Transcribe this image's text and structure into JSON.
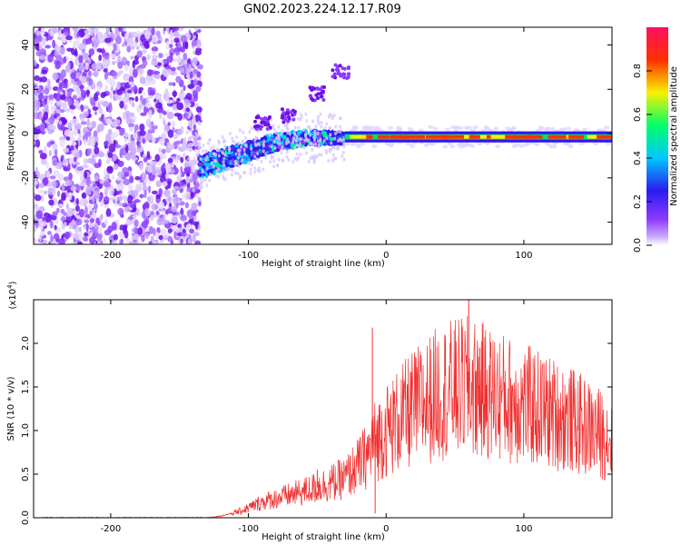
{
  "title": "GN02.2023.224.12.17.R09",
  "chart_data": [
    {
      "type": "heatmap",
      "xlabel": "Height of straight line (km)",
      "ylabel": "Frequency (Hz)",
      "xlim": [
        -256,
        164
      ],
      "ylim": [
        -50,
        48
      ],
      "xticks": [
        -200,
        -100,
        0,
        100
      ],
      "xtick_labels": [
        "-200",
        "-100",
        "0",
        "100"
      ],
      "yticks": [
        -40,
        -20,
        0,
        20,
        40
      ],
      "ytick_labels": [
        "-40",
        "-20",
        "0",
        "20",
        "40"
      ],
      "colorbar": {
        "label": "Normalized spectral amplitude",
        "range": [
          0.0,
          1.0
        ],
        "ticks": [
          0.0,
          0.2,
          0.4,
          0.6,
          0.8
        ],
        "tick_labels": [
          "0.0",
          "0.2",
          "0.4",
          "0.6",
          "0.8"
        ],
        "colors": [
          "#ffffff",
          "#8b3bff",
          "#2a1bf0",
          "#00c8ff",
          "#00ff6a",
          "#f8f000",
          "#ff3000",
          "#ff1060"
        ]
      },
      "features": {
        "noise_region_x": [
          -256,
          -135
        ],
        "ramp_points": [
          [
            -135,
            -15
          ],
          [
            -110,
            -10
          ],
          [
            -80,
            -4
          ],
          [
            -60,
            -2
          ],
          [
            -30,
            -2
          ]
        ],
        "faint_branch": [
          [
            -90,
            5
          ],
          [
            -70,
            8
          ],
          [
            -50,
            18
          ],
          [
            -33,
            28
          ]
        ],
        "line_freq_hz": -1.5,
        "line_x": [
          -30,
          164
        ]
      }
    },
    {
      "type": "line",
      "xlabel": "Height of straight line (km)",
      "ylabel": "SNR (10 * v/v)",
      "y_multiplier": "(x10",
      "y_multiplier_exp": "4",
      "y_multiplier_close": ")",
      "xlim": [
        -256,
        164
      ],
      "ylim": [
        0,
        2.5
      ],
      "xticks": [
        -200,
        -100,
        0,
        100
      ],
      "xtick_labels": [
        "-200",
        "-100",
        "0",
        "100"
      ],
      "yticks": [
        0.0,
        0.5,
        1.0,
        1.5,
        2.0
      ],
      "ytick_labels": [
        "0.0",
        "0.5",
        "1.0",
        "1.5",
        "2.0"
      ],
      "color": "#f03030",
      "envelope": {
        "x": [
          -256,
          -130,
          -120,
          -105,
          -90,
          -60,
          -30,
          -20,
          -12,
          -10,
          0,
          20,
          40,
          60,
          80,
          100,
          130,
          164
        ],
        "y": [
          0.0,
          0.0,
          0.02,
          0.08,
          0.18,
          0.3,
          0.45,
          0.6,
          0.75,
          0.85,
          1.0,
          1.25,
          1.45,
          1.5,
          1.4,
          1.3,
          1.15,
          0.9
        ]
      },
      "spikes": [
        [
          -10,
          2.18
        ],
        [
          -50,
          0.55
        ],
        [
          60,
          2.55
        ],
        [
          68,
          1.95
        ],
        [
          -8,
          0.05
        ]
      ]
    }
  ]
}
